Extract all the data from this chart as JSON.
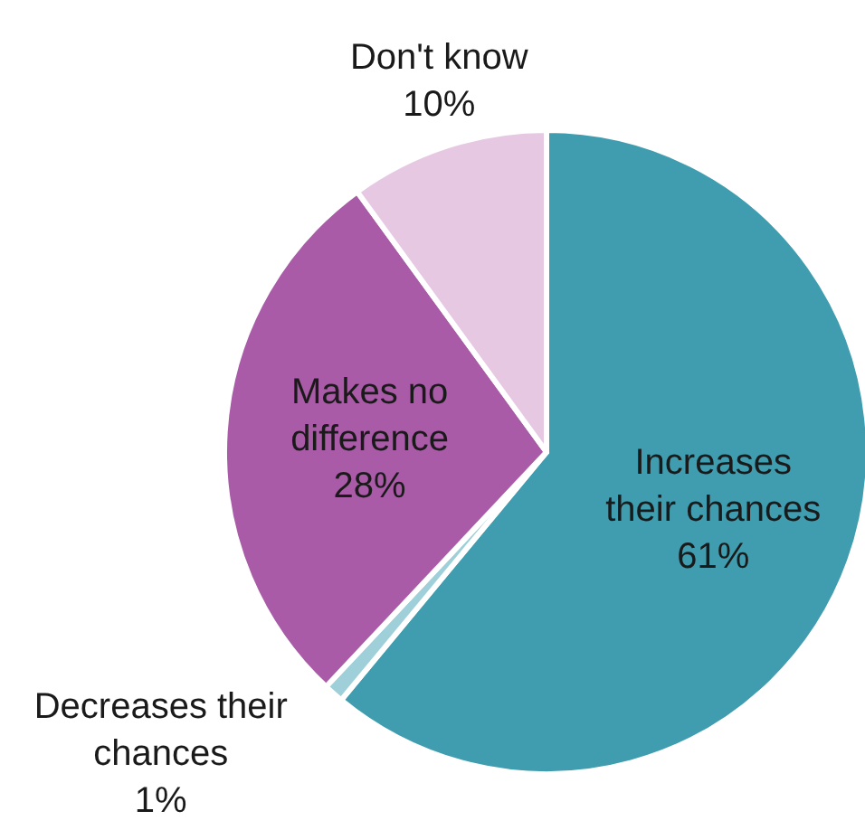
{
  "chart_data": {
    "type": "pie",
    "categories": [
      "Increases their chances",
      "Decreases their chances",
      "Makes no difference",
      "Don't know"
    ],
    "values": [
      61,
      1,
      28,
      10
    ],
    "colors": [
      "#409daf",
      "#9fd0da",
      "#a95ba7",
      "#e6c8e3"
    ],
    "value_labels": [
      "61%",
      "1%",
      "28%",
      "10%"
    ]
  }
}
